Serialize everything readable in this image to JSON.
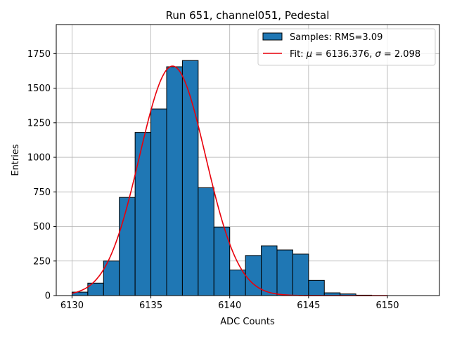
{
  "chart_data": {
    "type": "bar",
    "title": "Run 651, channel051, Pedestal",
    "xlabel": "ADC Counts",
    "ylabel": "Entries",
    "xlim": [
      6129,
      6153.3
    ],
    "ylim": [
      0,
      1960
    ],
    "x_ticks": [
      6130,
      6135,
      6140,
      6145,
      6150
    ],
    "x_tick_labels": [
      "6130",
      "6135",
      "6140",
      "6145",
      "6150"
    ],
    "y_ticks": [
      0,
      250,
      500,
      750,
      1000,
      1250,
      1500,
      1750
    ],
    "y_tick_labels": [
      "0",
      "250",
      "500",
      "750",
      "1000",
      "1250",
      "1500",
      "1750"
    ],
    "grid": true,
    "legend_placement": "top-right",
    "bin_width": 1,
    "bins": [
      {
        "x0": 6130,
        "value": 25
      },
      {
        "x0": 6131,
        "value": 90
      },
      {
        "x0": 6132,
        "value": 250
      },
      {
        "x0": 6133,
        "value": 710
      },
      {
        "x0": 6134,
        "value": 1180
      },
      {
        "x0": 6135,
        "value": 1350
      },
      {
        "x0": 6136,
        "value": 1655
      },
      {
        "x0": 6137,
        "value": 1700
      },
      {
        "x0": 6138,
        "value": 780
      },
      {
        "x0": 6139,
        "value": 495
      },
      {
        "x0": 6140,
        "value": 185
      },
      {
        "x0": 6141,
        "value": 290
      },
      {
        "x0": 6142,
        "value": 360
      },
      {
        "x0": 6143,
        "value": 330
      },
      {
        "x0": 6144,
        "value": 300
      },
      {
        "x0": 6145,
        "value": 110
      },
      {
        "x0": 6146,
        "value": 20
      },
      {
        "x0": 6147,
        "value": 12
      },
      {
        "x0": 6148,
        "value": 3
      }
    ],
    "fit": {
      "mu": 6136.376,
      "sigma": 2.098,
      "amplitude": 1660,
      "x_range": [
        6130,
        6150
      ]
    },
    "series": [
      {
        "name": "Samples: RMS=3.09",
        "type": "bar",
        "color": "#1f77b4",
        "edge_color": "#000000"
      },
      {
        "name": "Fit: μ = 6136.376, σ = 2.098",
        "type": "line",
        "color": "#e8000b"
      }
    ],
    "legend": {
      "samples_label": "Samples: RMS=3.09",
      "fit_prefix": "Fit: ",
      "mu_symbol": "μ",
      "mu_value": " = 6136.376, ",
      "sigma_symbol": "σ",
      "sigma_value": " = 2.098"
    }
  }
}
